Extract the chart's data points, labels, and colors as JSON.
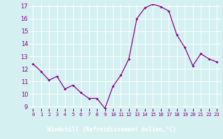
{
  "x": [
    0,
    1,
    2,
    3,
    4,
    5,
    6,
    7,
    8,
    9,
    10,
    11,
    12,
    13,
    14,
    15,
    16,
    17,
    18,
    19,
    20,
    21,
    22,
    23
  ],
  "y": [
    12.4,
    11.8,
    11.1,
    11.4,
    10.4,
    10.7,
    10.1,
    9.65,
    9.65,
    8.85,
    10.6,
    11.5,
    12.8,
    16.0,
    16.85,
    17.15,
    16.95,
    16.6,
    14.7,
    13.7,
    12.25,
    13.2,
    12.8,
    12.55
  ],
  "xlabel": "Windchill (Refroidissement éolien,°C)",
  "ylim": [
    9,
    17
  ],
  "xlim": [
    -0.5,
    23.5
  ],
  "yticks": [
    9,
    10,
    11,
    12,
    13,
    14,
    15,
    16,
    17
  ],
  "xticks": [
    0,
    1,
    2,
    3,
    4,
    5,
    6,
    7,
    8,
    9,
    10,
    11,
    12,
    13,
    14,
    15,
    16,
    17,
    18,
    19,
    20,
    21,
    22,
    23
  ],
  "line_color": "#8B008B",
  "marker_color": "#8B008B",
  "bg_color": "#d5f0f0",
  "grid_color": "#ffffff",
  "xlabel_bg": "#8B008B",
  "xlabel_text_color": "#ffffff",
  "tick_fontsize": 6,
  "xlabel_fontsize": 6
}
